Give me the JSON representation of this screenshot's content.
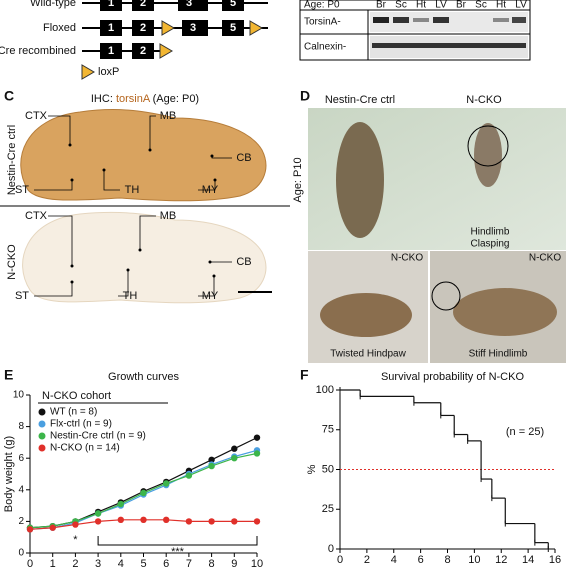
{
  "panels": {
    "a": {
      "rows": [
        "Wild-type",
        "Floxed",
        "Cre recombined"
      ],
      "exons": [
        "1",
        "2",
        "3",
        "5"
      ],
      "legend": "loxP"
    },
    "b": {
      "age": "Age: P0",
      "lanes": [
        "Br",
        "Sc",
        "Ht",
        "LV",
        "Br",
        "Sc",
        "Ht",
        "LV"
      ],
      "rows": [
        "TorsinA-",
        "Calnexin-"
      ]
    },
    "c": {
      "letter": "C",
      "title_prefix": "IHC: ",
      "title_protein": "torsinA",
      "title_suffix": " (Age: P0)",
      "rows": [
        "Nestin-Cre ctrl",
        "N-CKO"
      ],
      "regions": [
        "CTX",
        "MB",
        "CB",
        "ST",
        "TH",
        "MY"
      ]
    },
    "d": {
      "letter": "D",
      "top_labels": [
        "Nestin-Cre ctrl",
        "N-CKO"
      ],
      "age": "Age: P10",
      "clasping": [
        "Hindlimb",
        "Clasping"
      ],
      "bottom_tags": [
        "N-CKO",
        "N-CKO"
      ],
      "bottom_captions": [
        "Twisted Hindpaw",
        "Stiff Hindlimb"
      ]
    }
  },
  "chart_data": [
    {
      "letter": "E",
      "type": "line",
      "title": "Growth curves",
      "y_label": "Body weight (g)",
      "legend_title": "N-CKO cohort",
      "x": [
        0,
        1,
        2,
        3,
        4,
        5,
        6,
        7,
        8,
        9,
        10
      ],
      "xlim": [
        0,
        10
      ],
      "xticks": [
        0,
        1,
        2,
        3,
        4,
        5,
        6,
        7,
        8,
        9,
        10
      ],
      "ylim": [
        0,
        10
      ],
      "yticks": [
        0,
        2,
        4,
        6,
        8,
        10
      ],
      "series": [
        {
          "name": "WT (n = 8)",
          "color": "#111111",
          "values": [
            1.6,
            1.7,
            2.0,
            2.6,
            3.2,
            3.9,
            4.5,
            5.2,
            5.9,
            6.6,
            7.3
          ]
        },
        {
          "name": "Flx-ctrl (n = 9)",
          "color": "#4a9fe0",
          "values": [
            1.5,
            1.6,
            1.9,
            2.5,
            3.0,
            3.7,
            4.3,
            5.0,
            5.6,
            6.1,
            6.5
          ]
        },
        {
          "name": "Nestin-Cre ctrl (n = 9)",
          "color": "#3cb54a",
          "values": [
            1.6,
            1.7,
            2.0,
            2.5,
            3.1,
            3.8,
            4.4,
            4.9,
            5.5,
            6.0,
            6.3
          ]
        },
        {
          "name": "N-CKO (n = 14)",
          "color": "#e0302a",
          "values": [
            1.5,
            1.6,
            1.8,
            2.0,
            2.1,
            2.1,
            2.1,
            2.0,
            2.0,
            2.0,
            2.0
          ]
        }
      ],
      "annotations": [
        {
          "text": "*",
          "x": 2
        },
        {
          "text": "***",
          "x": [
            3,
            10
          ]
        }
      ]
    },
    {
      "letter": "F",
      "type": "step",
      "title": "Survival probability of N-CKO",
      "y_label": "%",
      "annotation": "(n = 25)",
      "color": "#111111",
      "x": [
        0,
        1.5,
        5.5,
        7.5,
        8.5,
        9.5,
        10.5,
        11.3,
        12.3,
        14.5,
        15.5
      ],
      "values": [
        100,
        96,
        92,
        84,
        72,
        68,
        44,
        32,
        16,
        4,
        0
      ],
      "xlim": [
        0,
        16
      ],
      "xticks": [
        0,
        2,
        4,
        6,
        8,
        10,
        12,
        14,
        16
      ],
      "ylim": [
        0,
        100
      ],
      "yticks": [
        0,
        25,
        50,
        75,
        100
      ],
      "reference_line": {
        "value": 50,
        "color": "#e0302a"
      }
    }
  ]
}
